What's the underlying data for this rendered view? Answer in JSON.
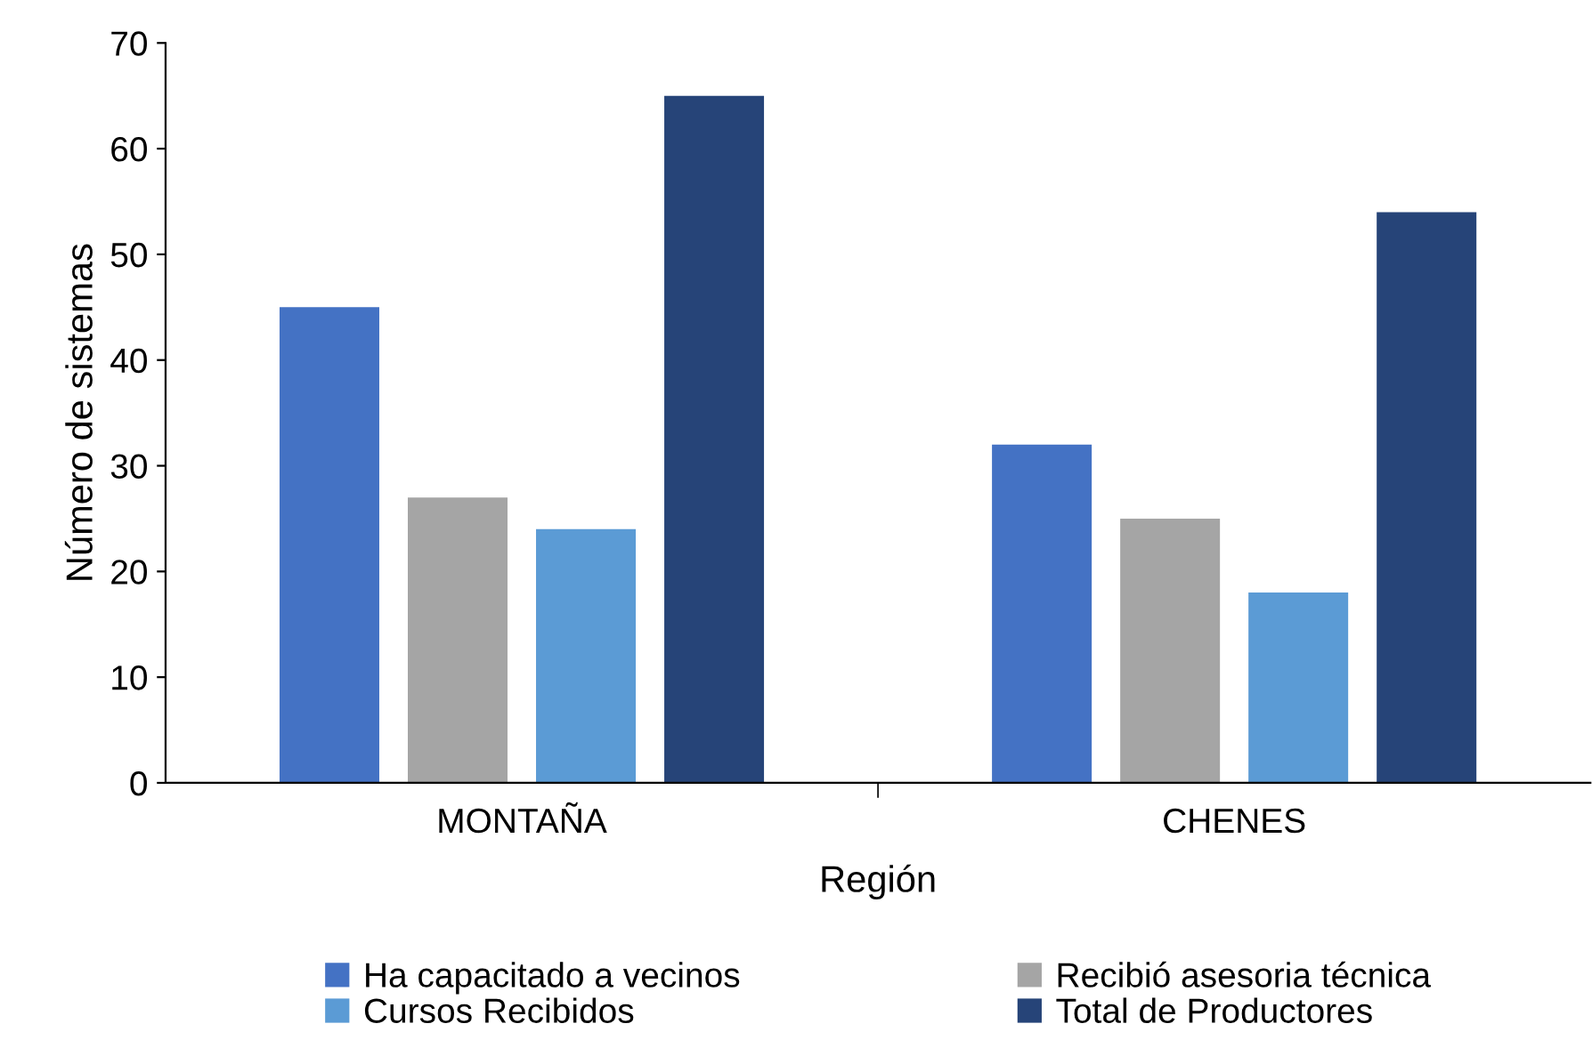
{
  "chart_data": {
    "type": "bar",
    "xlabel": "Región",
    "ylabel": "Número de sistemas",
    "categories": [
      "MONTAÑA",
      "CHENES"
    ],
    "series": [
      {
        "name": "Ha capacitado a vecinos",
        "color": "#4472c4",
        "values": [
          45,
          32
        ]
      },
      {
        "name": "Recibió asesoria técnica",
        "color": "#a5a5a5",
        "values": [
          27,
          25
        ]
      },
      {
        "name": "Cursos Recibidos",
        "color": "#5b9bd5",
        "values": [
          24,
          18
        ]
      },
      {
        "name": "Total de Productores",
        "color": "#264478",
        "values": [
          65,
          54
        ]
      }
    ],
    "ylim": [
      0,
      70
    ],
    "yticks": [
      0,
      10,
      20,
      30,
      40,
      50,
      60,
      70
    ],
    "grid": false,
    "legend": "bottom"
  }
}
